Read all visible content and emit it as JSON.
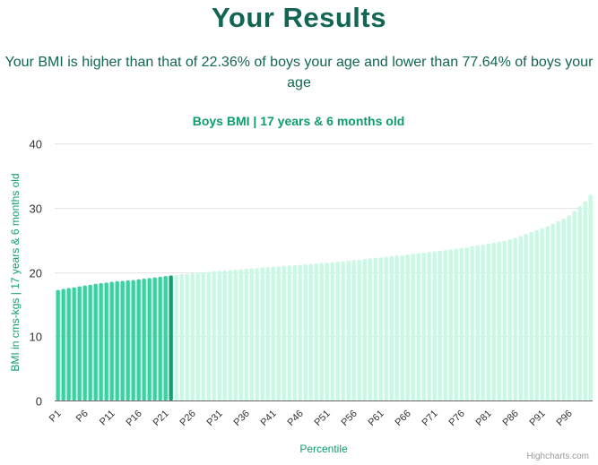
{
  "page": {
    "title": "Your Results",
    "subtitle": "Your BMI is higher than that of 22.36% of boys your age and lower than 77.64% of boys your age",
    "credit": "Highcharts.com"
  },
  "colors": {
    "title": "#136654",
    "chart_title": "#0f9d6b",
    "bar_below": "#36d39d",
    "bar_user": "#12a06e",
    "bar_above": "#c9f8e3",
    "grid": "#e6e6e6",
    "axis": "#666666"
  },
  "chart_data": {
    "type": "bar",
    "title": "Boys BMI | 17 years & 6 months old",
    "xlabel": "Percentile",
    "ylabel": "BMI in cms-kgs | 17 years & 6 months old",
    "ylim": [
      0,
      40
    ],
    "yticks": [
      0,
      10,
      20,
      30,
      40
    ],
    "grid": true,
    "legend": "none",
    "highlight_index": 21,
    "categories": [
      "P1",
      "P2",
      "P3",
      "P4",
      "P5",
      "P6",
      "P7",
      "P8",
      "P9",
      "P10",
      "P11",
      "P12",
      "P13",
      "P14",
      "P15",
      "P16",
      "P17",
      "P18",
      "P19",
      "P20",
      "P21",
      "P22",
      "P23",
      "P24",
      "P25",
      "P26",
      "P27",
      "P28",
      "P29",
      "P30",
      "P31",
      "P32",
      "P33",
      "P34",
      "P35",
      "P36",
      "P37",
      "P38",
      "P39",
      "P40",
      "P41",
      "P42",
      "P43",
      "P44",
      "P45",
      "P46",
      "P47",
      "P48",
      "P49",
      "P50",
      "P51",
      "P52",
      "P53",
      "P54",
      "P55",
      "P56",
      "P57",
      "P58",
      "P59",
      "P60",
      "P61",
      "P62",
      "P63",
      "P64",
      "P65",
      "P66",
      "P67",
      "P68",
      "P69",
      "P70",
      "P71",
      "P72",
      "P73",
      "P74",
      "P75",
      "P76",
      "P77",
      "P78",
      "P79",
      "P80",
      "P81",
      "P82",
      "P83",
      "P84",
      "P85",
      "P86",
      "P87",
      "P88",
      "P89",
      "P90",
      "P91",
      "P92",
      "P93",
      "P94",
      "P95",
      "P96",
      "P97",
      "P98",
      "P99",
      "P100"
    ],
    "tick_labels": [
      "P1",
      "P6",
      "P11",
      "P16",
      "P21",
      "P26",
      "P31",
      "P36",
      "P41",
      "P46",
      "P51",
      "P56",
      "P61",
      "P66",
      "P71",
      "P76",
      "P81",
      "P86",
      "P91",
      "P96"
    ],
    "values": [
      17.2,
      17.35,
      17.5,
      17.6,
      17.75,
      17.9,
      18.0,
      18.15,
      18.25,
      18.35,
      18.45,
      18.55,
      18.6,
      18.7,
      18.75,
      18.85,
      18.95,
      19.05,
      19.15,
      19.25,
      19.35,
      19.45,
      19.55,
      19.65,
      19.7,
      19.8,
      19.9,
      19.95,
      20.0,
      20.1,
      20.15,
      20.2,
      20.3,
      20.35,
      20.4,
      20.5,
      20.55,
      20.6,
      20.7,
      20.75,
      20.8,
      20.85,
      20.95,
      21.0,
      21.05,
      21.1,
      21.2,
      21.25,
      21.3,
      21.4,
      21.45,
      21.5,
      21.6,
      21.65,
      21.75,
      21.85,
      21.9,
      22.0,
      22.1,
      22.2,
      22.25,
      22.35,
      22.45,
      22.55,
      22.6,
      22.7,
      22.8,
      22.9,
      23.0,
      23.1,
      23.2,
      23.3,
      23.4,
      23.5,
      23.6,
      23.75,
      23.85,
      24.0,
      24.1,
      24.25,
      24.4,
      24.55,
      24.7,
      24.85,
      25.05,
      25.3,
      25.6,
      25.9,
      26.2,
      26.5,
      26.8,
      27.1,
      27.5,
      27.9,
      28.3,
      28.8,
      29.5,
      30.2,
      31.0,
      32.0
    ]
  }
}
